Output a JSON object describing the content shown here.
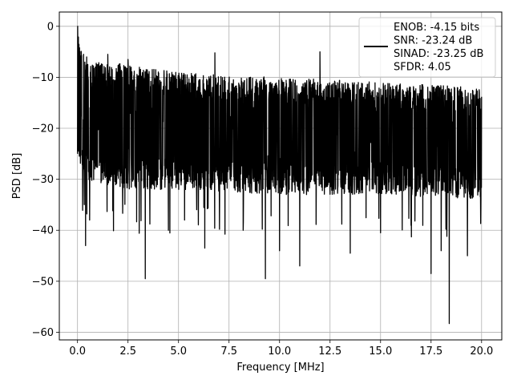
{
  "chart_data": {
    "type": "line",
    "title": "",
    "xlabel": "Frequency [MHz]",
    "ylabel": "PSD [dB]",
    "xlim": [
      -0.9,
      21.0
    ],
    "ylim": [
      -61.5,
      2.8
    ],
    "xticks": [
      0.0,
      2.5,
      5.0,
      7.5,
      10.0,
      12.5,
      15.0,
      17.5,
      20.0
    ],
    "xtick_labels": [
      "0.0",
      "2.5",
      "5.0",
      "7.5",
      "10.0",
      "12.5",
      "15.0",
      "17.5",
      "20.0"
    ],
    "yticks": [
      0,
      -10,
      -20,
      -30,
      -40,
      -50,
      -60
    ],
    "ytick_labels": [
      "0",
      "−10",
      "−20",
      "−30",
      "−40",
      "−50",
      "−60"
    ],
    "grid": true,
    "legend_position": "upper-right",
    "legend_entries": [
      "ENOB: -4.15 bits",
      "SNR: -23.24 dB",
      "SINAD: -23.25 dB",
      "SFDR: 4.05"
    ],
    "line_color": "#000000",
    "series": [
      {
        "description": "dense noise-like PSD trace, black",
        "x_range": [
          0.0,
          20.0
        ],
        "envelope_upper": [
          [
            0.0,
            0.0
          ],
          [
            0.3,
            -7
          ],
          [
            1.5,
            -7
          ],
          [
            5.0,
            -9
          ],
          [
            10.0,
            -10
          ],
          [
            15.0,
            -11
          ],
          [
            20.0,
            -12
          ]
        ],
        "envelope_lower": [
          [
            0.0,
            -25
          ],
          [
            0.3,
            -30
          ],
          [
            2.5,
            -32
          ],
          [
            5.0,
            -32
          ],
          [
            10.0,
            -33
          ],
          [
            15.0,
            -33
          ],
          [
            20.0,
            -34
          ]
        ],
        "peaks": [
          [
            0.0,
            0.0
          ],
          [
            0.3,
            -5.5
          ],
          [
            0.45,
            -6.0
          ],
          [
            1.0,
            -7.5
          ],
          [
            1.5,
            -5.5
          ],
          [
            2.5,
            -6.5
          ],
          [
            6.8,
            -5.2
          ],
          [
            12.0,
            -5.0
          ]
        ],
        "dips": [
          [
            0.4,
            -43
          ],
          [
            0.6,
            -38
          ],
          [
            3.35,
            -49.5
          ],
          [
            4.5,
            -40
          ],
          [
            5.3,
            -38
          ],
          [
            6.3,
            -43.5
          ],
          [
            8.2,
            -40
          ],
          [
            9.3,
            -49.5
          ],
          [
            10.0,
            -44
          ],
          [
            11.0,
            -47
          ],
          [
            13.5,
            -44.5
          ],
          [
            15.0,
            -40.5
          ],
          [
            17.5,
            -48.5
          ],
          [
            18.0,
            -44
          ],
          [
            18.4,
            -58.3
          ],
          [
            19.3,
            -45
          ]
        ]
      }
    ]
  }
}
